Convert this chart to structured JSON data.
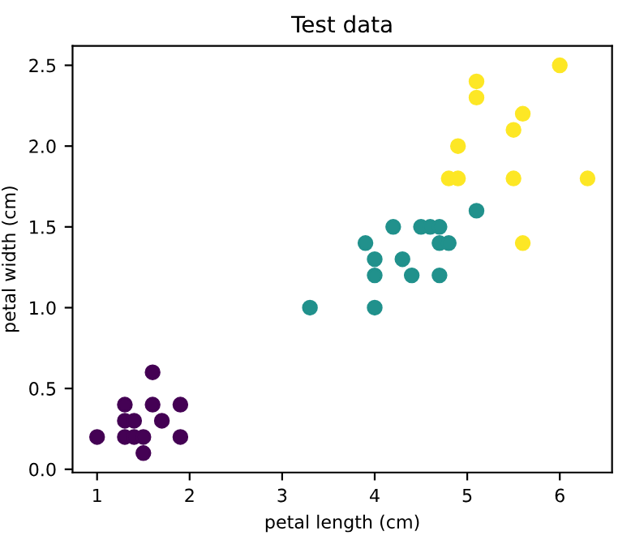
{
  "chart_data": {
    "type": "scatter",
    "title": "Test data",
    "xlabel": "petal length (cm)",
    "ylabel": "petal width (cm)",
    "xlim": [
      0.735,
      6.565
    ],
    "ylim": [
      -0.02,
      2.62
    ],
    "xticks": [
      1,
      2,
      3,
      4,
      5,
      6
    ],
    "yticks": [
      {
        "value": 0,
        "label": "0.0"
      },
      {
        "value": 0.5,
        "label": "0.5"
      },
      {
        "value": 1,
        "label": "1.0"
      },
      {
        "value": 1.5,
        "label": "1.5"
      },
      {
        "value": 2,
        "label": "2.0"
      },
      {
        "value": 2.5,
        "label": "2.5"
      }
    ],
    "grid": false,
    "marker": "circle",
    "series": [
      {
        "color": "#440154",
        "x": [
          1.6,
          1.3,
          1.6,
          1.9,
          1.3,
          1.4,
          1.7,
          1.0,
          1.3,
          1.4,
          1.5,
          1.9,
          1.5
        ],
        "values": [
          0.6,
          0.4,
          0.4,
          0.4,
          0.3,
          0.3,
          0.3,
          0.2,
          0.2,
          0.2,
          0.2,
          0.2,
          0.1
        ]
      },
      {
        "color": "#21918c",
        "x": [
          5.1,
          4.2,
          4.5,
          4.6,
          4.7,
          3.9,
          4.7,
          4.8,
          4.0,
          4.3,
          4.0,
          4.4,
          4.7,
          3.3,
          4.0
        ],
        "values": [
          1.6,
          1.5,
          1.5,
          1.5,
          1.5,
          1.4,
          1.4,
          1.4,
          1.3,
          1.3,
          1.2,
          1.2,
          1.2,
          1.0,
          1.0
        ]
      },
      {
        "color": "#fde725",
        "x": [
          6.0,
          5.1,
          5.1,
          5.6,
          5.5,
          4.9,
          4.8,
          4.9,
          5.5,
          6.3,
          5.6
        ],
        "values": [
          2.5,
          2.4,
          2.3,
          2.2,
          2.1,
          2.0,
          1.8,
          1.8,
          1.8,
          1.8,
          1.4
        ]
      }
    ]
  }
}
